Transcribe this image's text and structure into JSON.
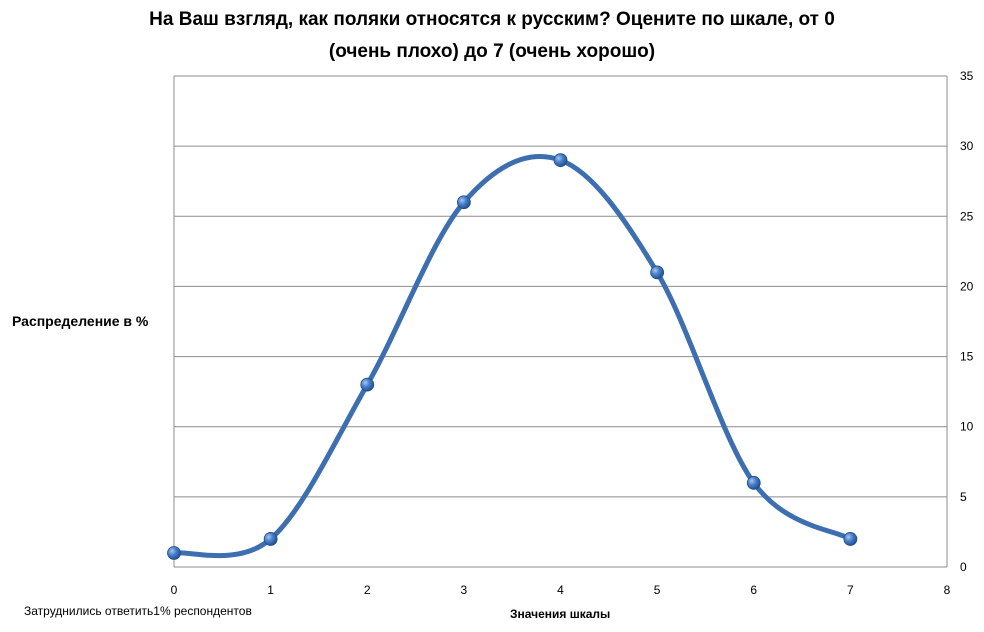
{
  "chart_data": {
    "type": "line",
    "title_line1": "На Ваш взгляд, как поляки относятся к русским? Оцените по шкале, от 0",
    "title_line2": "(очень плохо) до 7 (очень хорошо)",
    "xlabel": "Значения шкалы",
    "ylabel": "Распределение в %",
    "note": "Затруднились ответить1% респондентов",
    "x": [
      0,
      1,
      2,
      3,
      4,
      5,
      6,
      7
    ],
    "y": [
      1,
      2,
      13,
      26,
      29,
      21,
      6,
      2
    ],
    "xlim": [
      0,
      8
    ],
    "ylim": [
      0,
      35
    ],
    "x_ticks": [
      "0",
      "1",
      "2",
      "3",
      "4",
      "5",
      "6",
      "7",
      "8"
    ],
    "y_ticks": [
      "0",
      "5",
      "10",
      "15",
      "20",
      "25",
      "30",
      "35"
    ],
    "y_axis_side": "right",
    "grid": true,
    "smooth": true,
    "line_color": "#3d6fb0",
    "marker_color": "#4a7fc8"
  }
}
